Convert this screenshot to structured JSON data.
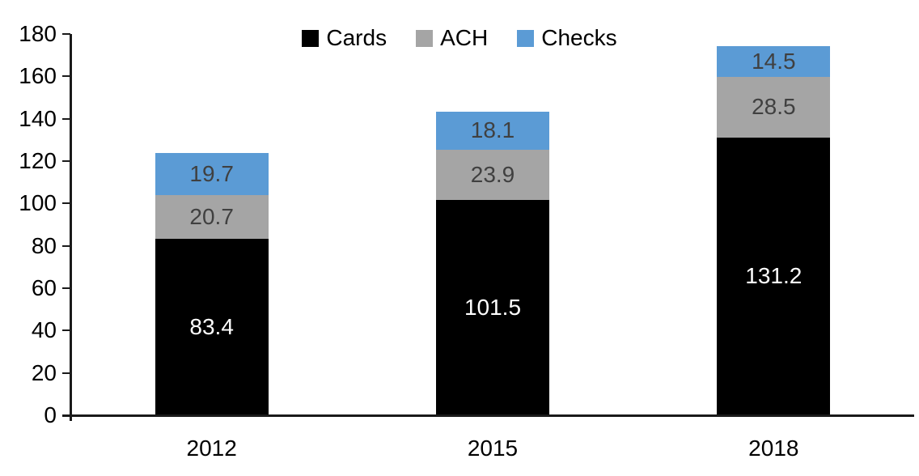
{
  "chart_data": {
    "type": "bar",
    "stacked": true,
    "title": "",
    "xlabel": "",
    "ylabel": "",
    "categories": [
      "2012",
      "2015",
      "2018"
    ],
    "series": [
      {
        "name": "Cards",
        "color": "#000000",
        "label_color": "#ffffff",
        "values": [
          83.4,
          101.5,
          131.2
        ]
      },
      {
        "name": "ACH",
        "color": "#a5a5a5",
        "label_color": "#404040",
        "values": [
          20.7,
          23.9,
          28.5
        ]
      },
      {
        "name": "Checks",
        "color": "#5b9bd5",
        "label_color": "#404040",
        "values": [
          19.7,
          18.1,
          14.5
        ]
      }
    ],
    "stack_order": "bottom-to-top",
    "ylim": [
      0,
      180
    ],
    "ytick_step": 20,
    "ytick_labels": [
      "0",
      "20",
      "40",
      "60",
      "80",
      "100",
      "120",
      "140",
      "160",
      "180"
    ],
    "grid": false,
    "legend_position": "top-center",
    "legend_entries": [
      "Cards",
      "ACH",
      "Checks"
    ],
    "data_labels": "inside-center",
    "axis_color": "#1a1a1a",
    "background_color": "#ffffff"
  }
}
